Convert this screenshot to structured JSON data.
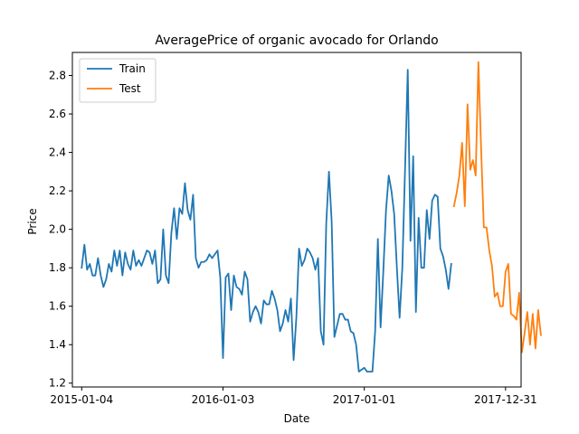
{
  "chart_data": {
    "type": "line",
    "title": "AveragePrice of organic avocado for Orlando",
    "xlabel": "Date",
    "ylabel": "Price",
    "x_type": "date",
    "xlim": [
      "2014-12-11",
      "2018-02-09"
    ],
    "ylim": [
      1.18,
      2.92
    ],
    "x_ticks": [
      "2015-01-04",
      "2016-01-03",
      "2017-01-01",
      "2017-12-31"
    ],
    "y_ticks": [
      1.2,
      1.4,
      1.6,
      1.8,
      2.0,
      2.2,
      2.4,
      2.6,
      2.8
    ],
    "y_tick_labels": [
      "1.2",
      "1.4",
      "1.6",
      "1.8",
      "2.0",
      "2.2",
      "2.4",
      "2.6",
      "2.8"
    ],
    "grid": false,
    "legend_position": "top-left",
    "series": [
      {
        "name": "Train",
        "color": "#1f77b4",
        "points": [
          [
            "2015-01-04",
            1.8
          ],
          [
            "2015-01-11",
            1.92
          ],
          [
            "2015-01-18",
            1.79
          ],
          [
            "2015-01-25",
            1.82
          ],
          [
            "2015-02-01",
            1.76
          ],
          [
            "2015-02-08",
            1.76
          ],
          [
            "2015-02-15",
            1.85
          ],
          [
            "2015-02-22",
            1.76
          ],
          [
            "2015-03-01",
            1.7
          ],
          [
            "2015-03-08",
            1.74
          ],
          [
            "2015-03-15",
            1.82
          ],
          [
            "2015-03-22",
            1.78
          ],
          [
            "2015-03-29",
            1.89
          ],
          [
            "2015-04-05",
            1.81
          ],
          [
            "2015-04-12",
            1.89
          ],
          [
            "2015-04-19",
            1.76
          ],
          [
            "2015-04-26",
            1.88
          ],
          [
            "2015-05-03",
            1.82
          ],
          [
            "2015-05-10",
            1.79
          ],
          [
            "2015-05-17",
            1.89
          ],
          [
            "2015-05-24",
            1.81
          ],
          [
            "2015-05-31",
            1.84
          ],
          [
            "2015-06-07",
            1.81
          ],
          [
            "2015-06-14",
            1.85
          ],
          [
            "2015-06-21",
            1.89
          ],
          [
            "2015-06-28",
            1.88
          ],
          [
            "2015-07-05",
            1.82
          ],
          [
            "2015-07-12",
            1.89
          ],
          [
            "2015-07-19",
            1.72
          ],
          [
            "2015-07-26",
            1.74
          ],
          [
            "2015-08-02",
            2.0
          ],
          [
            "2015-08-09",
            1.76
          ],
          [
            "2015-08-16",
            1.72
          ],
          [
            "2015-08-23",
            1.98
          ],
          [
            "2015-08-30",
            2.11
          ],
          [
            "2015-09-06",
            1.95
          ],
          [
            "2015-09-13",
            2.11
          ],
          [
            "2015-09-20",
            2.08
          ],
          [
            "2015-09-27",
            2.24
          ],
          [
            "2015-10-04",
            2.1
          ],
          [
            "2015-10-11",
            2.05
          ],
          [
            "2015-10-18",
            2.18
          ],
          [
            "2015-10-25",
            1.85
          ],
          [
            "2015-11-01",
            1.8
          ],
          [
            "2015-11-08",
            1.83
          ],
          [
            "2015-11-15",
            1.83
          ],
          [
            "2015-11-22",
            1.84
          ],
          [
            "2015-11-29",
            1.87
          ],
          [
            "2015-12-06",
            1.85
          ],
          [
            "2015-12-13",
            1.87
          ],
          [
            "2015-12-20",
            1.89
          ],
          [
            "2015-12-27",
            1.75
          ],
          [
            "2016-01-03",
            1.33
          ],
          [
            "2016-01-10",
            1.75
          ],
          [
            "2016-01-17",
            1.77
          ],
          [
            "2016-01-24",
            1.58
          ],
          [
            "2016-01-31",
            1.76
          ],
          [
            "2016-02-07",
            1.7
          ],
          [
            "2016-02-14",
            1.69
          ],
          [
            "2016-02-21",
            1.66
          ],
          [
            "2016-02-28",
            1.78
          ],
          [
            "2016-03-06",
            1.74
          ],
          [
            "2016-03-13",
            1.52
          ],
          [
            "2016-03-20",
            1.57
          ],
          [
            "2016-03-27",
            1.6
          ],
          [
            "2016-04-03",
            1.57
          ],
          [
            "2016-04-10",
            1.51
          ],
          [
            "2016-04-17",
            1.63
          ],
          [
            "2016-04-24",
            1.61
          ],
          [
            "2016-05-01",
            1.61
          ],
          [
            "2016-05-08",
            1.68
          ],
          [
            "2016-05-15",
            1.64
          ],
          [
            "2016-05-22",
            1.58
          ],
          [
            "2016-05-29",
            1.47
          ],
          [
            "2016-06-05",
            1.51
          ],
          [
            "2016-06-12",
            1.58
          ],
          [
            "2016-06-19",
            1.52
          ],
          [
            "2016-06-26",
            1.64
          ],
          [
            "2016-07-03",
            1.32
          ],
          [
            "2016-07-10",
            1.54
          ],
          [
            "2016-07-17",
            1.9
          ],
          [
            "2016-07-24",
            1.81
          ],
          [
            "2016-07-31",
            1.84
          ],
          [
            "2016-08-07",
            1.9
          ],
          [
            "2016-08-14",
            1.88
          ],
          [
            "2016-08-21",
            1.85
          ],
          [
            "2016-08-28",
            1.79
          ],
          [
            "2016-09-04",
            1.85
          ],
          [
            "2016-09-11",
            1.47
          ],
          [
            "2016-09-18",
            1.4
          ],
          [
            "2016-09-25",
            2.03
          ],
          [
            "2016-10-02",
            2.3
          ],
          [
            "2016-10-09",
            2.04
          ],
          [
            "2016-10-16",
            1.44
          ],
          [
            "2016-10-23",
            1.5
          ],
          [
            "2016-10-30",
            1.56
          ],
          [
            "2016-11-06",
            1.56
          ],
          [
            "2016-11-13",
            1.53
          ],
          [
            "2016-11-20",
            1.53
          ],
          [
            "2016-11-27",
            1.47
          ],
          [
            "2016-12-04",
            1.46
          ],
          [
            "2016-12-11",
            1.4
          ],
          [
            "2016-12-18",
            1.26
          ],
          [
            "2016-12-25",
            1.27
          ],
          [
            "2017-01-01",
            1.28
          ],
          [
            "2017-01-08",
            1.26
          ],
          [
            "2017-01-15",
            1.26
          ],
          [
            "2017-01-22",
            1.26
          ],
          [
            "2017-01-29",
            1.47
          ],
          [
            "2017-02-05",
            1.95
          ],
          [
            "2017-02-12",
            1.49
          ],
          [
            "2017-02-19",
            1.78
          ],
          [
            "2017-02-26",
            2.1
          ],
          [
            "2017-03-05",
            2.28
          ],
          [
            "2017-03-12",
            2.2
          ],
          [
            "2017-03-19",
            2.08
          ],
          [
            "2017-03-26",
            1.8
          ],
          [
            "2017-04-02",
            1.54
          ],
          [
            "2017-04-09",
            1.8
          ],
          [
            "2017-04-16",
            2.31
          ],
          [
            "2017-04-23",
            2.83
          ],
          [
            "2017-04-30",
            1.94
          ],
          [
            "2017-05-07",
            2.38
          ],
          [
            "2017-05-14",
            1.57
          ],
          [
            "2017-05-21",
            2.06
          ],
          [
            "2017-05-28",
            1.8
          ],
          [
            "2017-06-04",
            1.8
          ],
          [
            "2017-06-11",
            2.1
          ],
          [
            "2017-06-18",
            1.95
          ],
          [
            "2017-06-25",
            2.15
          ],
          [
            "2017-07-02",
            2.18
          ],
          [
            "2017-07-09",
            2.17
          ],
          [
            "2017-07-16",
            1.9
          ],
          [
            "2017-07-23",
            1.86
          ],
          [
            "2017-07-30",
            1.79
          ],
          [
            "2017-08-06",
            1.69
          ],
          [
            "2017-08-13",
            1.82
          ]
        ]
      },
      {
        "name": "Test",
        "color": "#ff7f0e",
        "points": [
          [
            "2017-08-20",
            2.12
          ],
          [
            "2017-08-27",
            2.19
          ],
          [
            "2017-09-03",
            2.28
          ],
          [
            "2017-09-10",
            2.45
          ],
          [
            "2017-09-17",
            2.12
          ],
          [
            "2017-09-24",
            2.65
          ],
          [
            "2017-10-01",
            2.31
          ],
          [
            "2017-10-08",
            2.36
          ],
          [
            "2017-10-15",
            2.28
          ],
          [
            "2017-10-22",
            2.87
          ],
          [
            "2017-10-29",
            2.42
          ],
          [
            "2017-11-05",
            2.01
          ],
          [
            "2017-11-12",
            2.01
          ],
          [
            "2017-11-19",
            1.89
          ],
          [
            "2017-11-26",
            1.81
          ],
          [
            "2017-12-03",
            1.65
          ],
          [
            "2017-12-10",
            1.67
          ],
          [
            "2017-12-17",
            1.6
          ],
          [
            "2017-12-24",
            1.6
          ],
          [
            "2017-12-31",
            1.78
          ],
          [
            "2018-01-07",
            1.82
          ],
          [
            "2018-01-14",
            1.56
          ],
          [
            "2018-01-21",
            1.55
          ],
          [
            "2018-01-28",
            1.53
          ],
          [
            "2018-02-04",
            1.67
          ],
          [
            "2018-02-11",
            1.36
          ],
          [
            "2018-02-18",
            1.46
          ],
          [
            "2018-02-25",
            1.57
          ],
          [
            "2018-03-04",
            1.4
          ],
          [
            "2018-03-11",
            1.56
          ],
          [
            "2018-03-18",
            1.38
          ],
          [
            "2018-03-25",
            1.58
          ],
          [
            "2018-04-01",
            1.45
          ]
        ]
      }
    ]
  }
}
